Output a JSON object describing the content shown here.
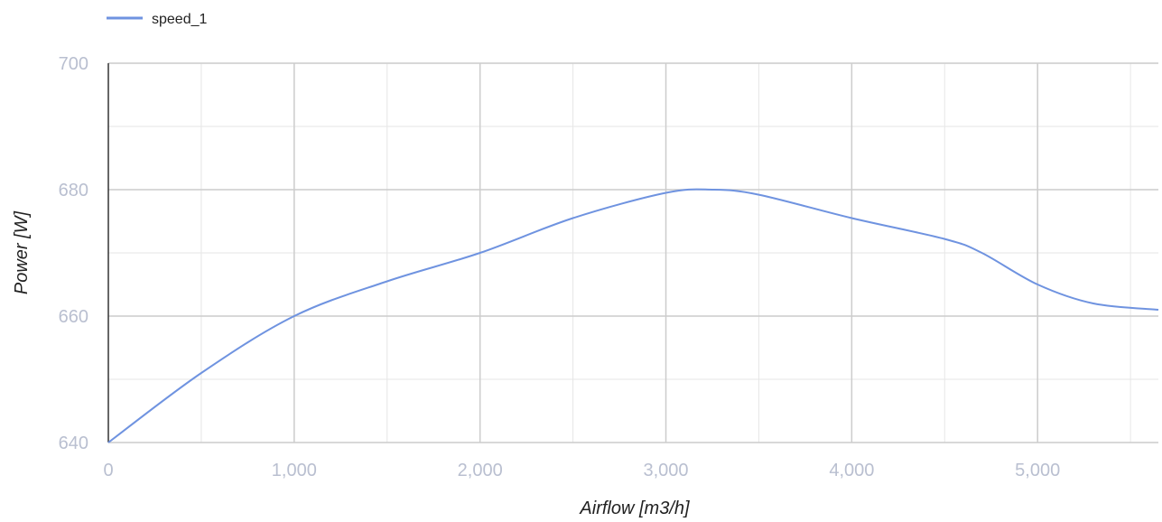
{
  "chart_data": {
    "type": "line",
    "xlabel": "Airflow [m3/h]",
    "ylabel": "Power [W]",
    "xlim": [
      0,
      5650
    ],
    "ylim": [
      640,
      700
    ],
    "x_ticks": [
      0,
      1000,
      2000,
      3000,
      4000,
      5000
    ],
    "x_tick_labels": [
      "0",
      "1,000",
      "2,000",
      "3,000",
      "4,000",
      "5,000"
    ],
    "y_ticks": [
      640,
      660,
      680,
      700
    ],
    "y_tick_labels": [
      "640",
      "660",
      "680",
      "700"
    ],
    "grid": true,
    "legend_position": "top-left",
    "colors": {
      "series": "#6f93e0",
      "major_grid": "#cccccc",
      "minor_grid": "#e6e6e6",
      "axis": "#333333",
      "tick_label": "#b9bfd0"
    },
    "series": [
      {
        "name": "speed_1",
        "x": [
          0,
          500,
          1000,
          1500,
          2000,
          2500,
          3000,
          3250,
          3500,
          4000,
          4500,
          4700,
          5000,
          5300,
          5650
        ],
        "y": [
          640,
          651,
          660,
          665.5,
          670,
          675.5,
          679.5,
          680,
          679.2,
          675.5,
          672.2,
          670,
          665,
          662,
          661
        ]
      }
    ]
  }
}
